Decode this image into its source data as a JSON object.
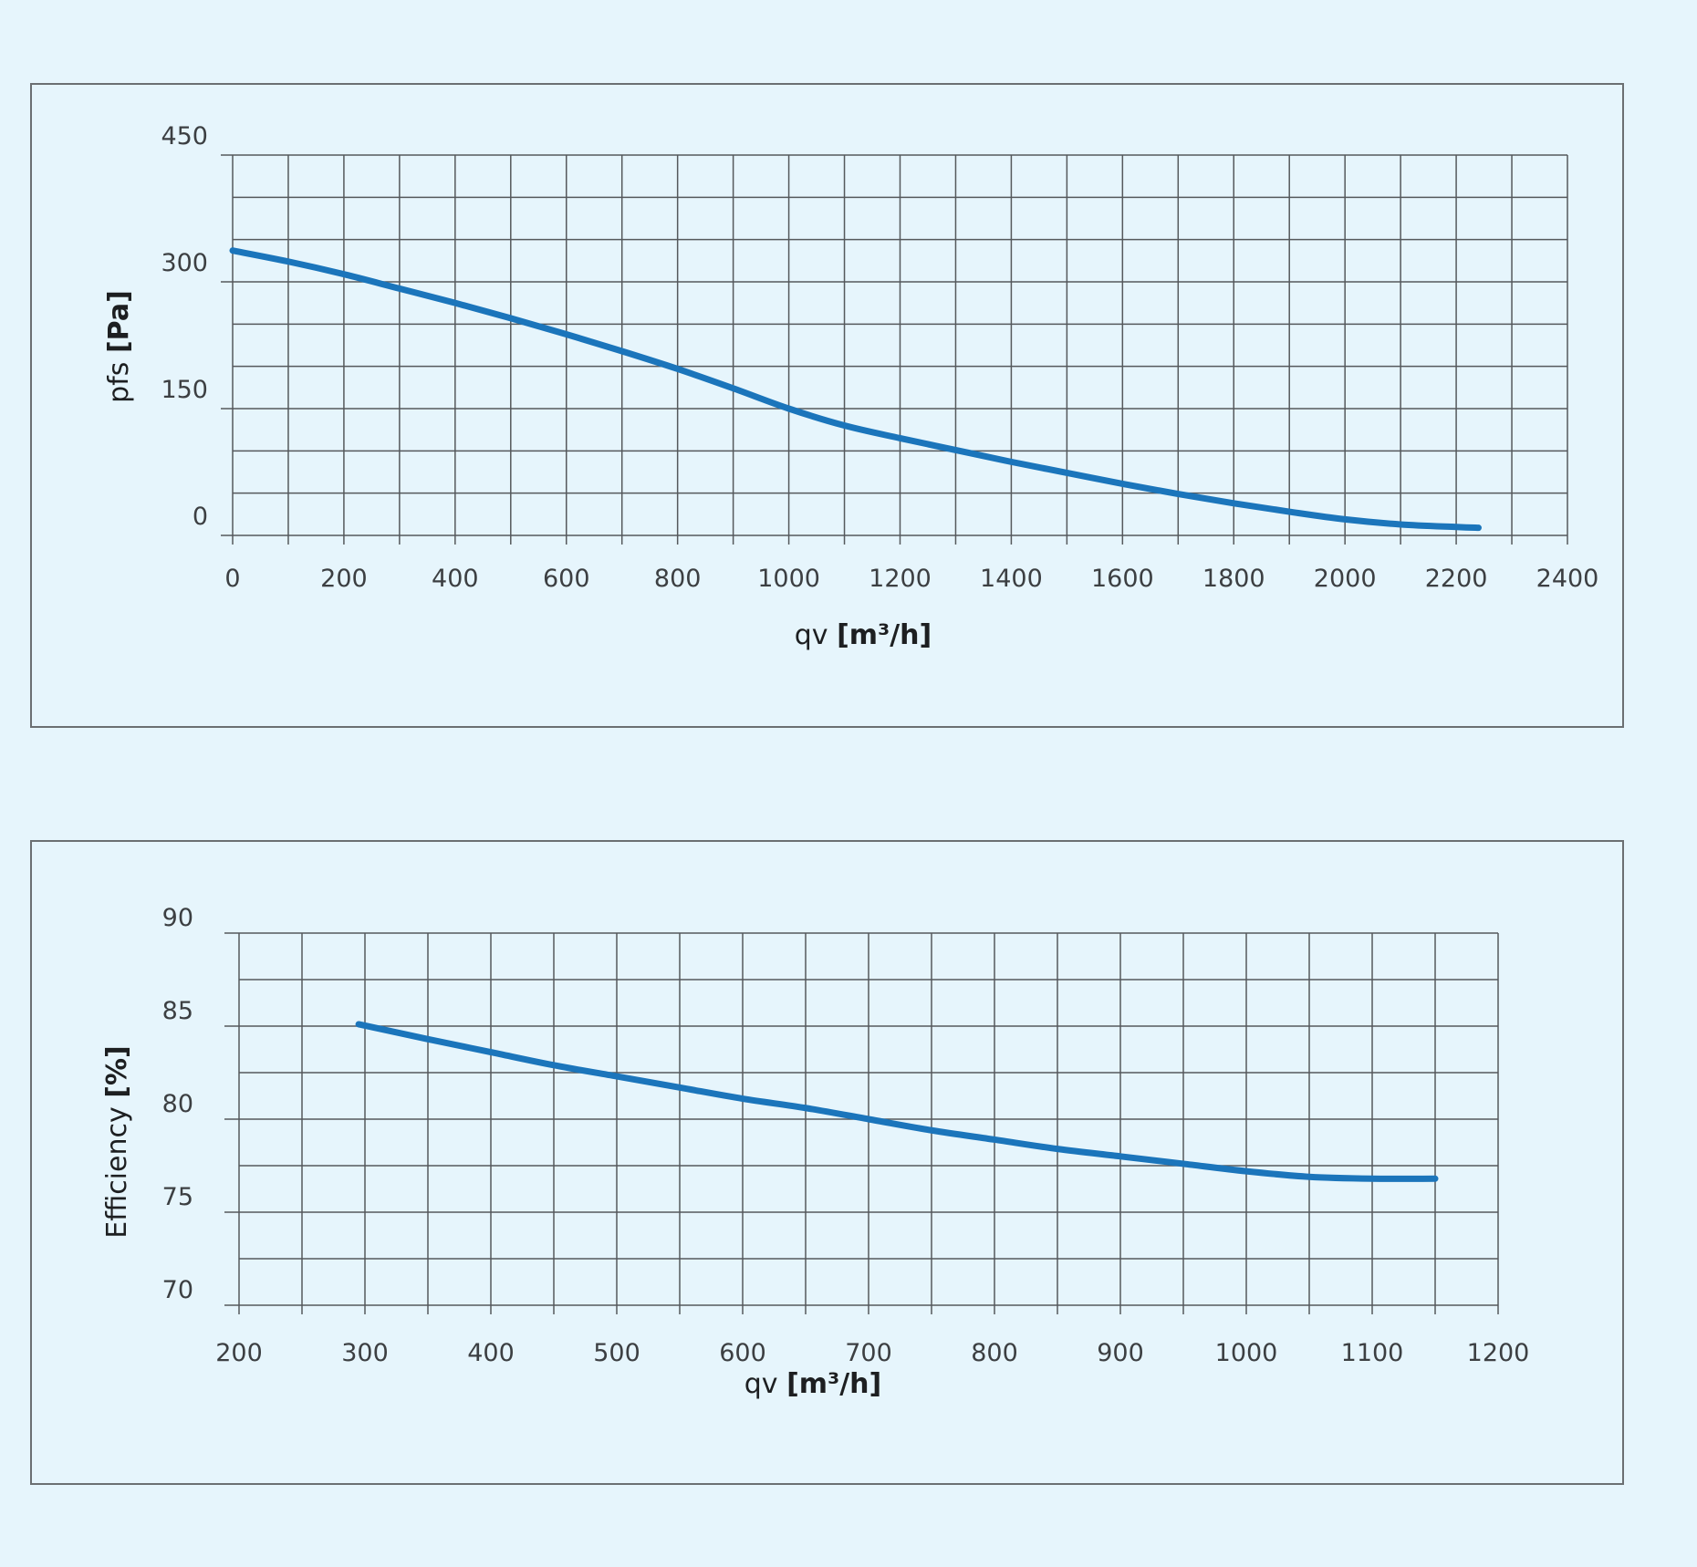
{
  "colors": {
    "background": "#e6f5fc",
    "frame": "#6b6f72",
    "grid": "#55595c",
    "series": "#1b75bb",
    "text": "#3c3f42"
  },
  "chart_data": [
    {
      "type": "line",
      "xlabel": "qv",
      "xunit": "[m³/h]",
      "ylabel": "pfs",
      "yunit": "[Pa]",
      "xlim": [
        0,
        2400
      ],
      "ylim": [
        0,
        450
      ],
      "x_ticks": [
        0,
        200,
        400,
        600,
        800,
        1000,
        1200,
        1400,
        1600,
        1800,
        2000,
        2200,
        2400
      ],
      "y_ticks": [
        0,
        150,
        300,
        450
      ],
      "x_grid_step": 100,
      "y_grid_step": 50,
      "grid": true,
      "series": [
        {
          "x": [
            0,
            100,
            200,
            300,
            400,
            500,
            600,
            700,
            800,
            900,
            1000,
            1100,
            1200,
            1300,
            1400,
            1500,
            1600,
            1700,
            1800,
            1900,
            2000,
            2100,
            2200,
            2240
          ],
          "y": [
            337,
            324,
            309,
            292,
            275,
            257,
            238,
            218,
            197,
            174,
            150,
            130,
            115,
            101,
            87,
            74,
            61,
            49,
            38,
            28,
            19,
            13,
            10,
            9
          ]
        }
      ]
    },
    {
      "type": "line",
      "xlabel": "qv",
      "xunit": "[m³/h]",
      "ylabel": "Efficiency",
      "yunit": "[%]",
      "xlim": [
        200,
        1200
      ],
      "ylim": [
        70,
        90
      ],
      "x_ticks": [
        200,
        300,
        400,
        500,
        600,
        700,
        800,
        900,
        1000,
        1100,
        1200
      ],
      "y_ticks": [
        70,
        75,
        80,
        85,
        90
      ],
      "x_grid_step": 50,
      "y_grid_step": 2.5,
      "grid": true,
      "series": [
        {
          "x": [
            295,
            350,
            400,
            450,
            500,
            550,
            600,
            650,
            700,
            750,
            800,
            850,
            900,
            950,
            1000,
            1050,
            1100,
            1150
          ],
          "y": [
            85.1,
            84.3,
            83.6,
            82.9,
            82.3,
            81.7,
            81.1,
            80.6,
            80.0,
            79.4,
            78.9,
            78.4,
            78.0,
            77.6,
            77.2,
            76.9,
            76.8,
            76.8
          ]
        }
      ]
    }
  ]
}
